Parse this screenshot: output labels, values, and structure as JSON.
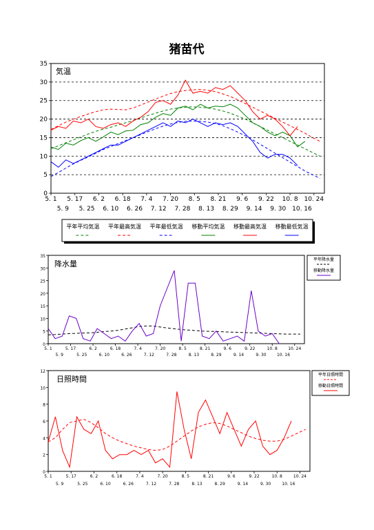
{
  "title": "猪苗代",
  "chart_data": [
    {
      "type": "line",
      "panel_label": "気温",
      "ylim": [
        0,
        35
      ],
      "yticks": [
        0,
        5,
        10,
        15,
        20,
        25,
        30,
        35
      ],
      "xticks_top": [
        "5. 1",
        "5. 17",
        "6. 2",
        "6. 18",
        "7. 4",
        "7. 20",
        "8. 5",
        "8. 21",
        "9. 6",
        "9. 22",
        "10. 8",
        "10. 24"
      ],
      "xticks_bottom": [
        "5. 9",
        "5. 25",
        "6. 10",
        "6. 26",
        "7. 12",
        "7. 28",
        "8. 13",
        "8. 29",
        "9. 14",
        "9. 30",
        "10. 16"
      ],
      "x": [
        "5/1",
        "5/6",
        "5/11",
        "5/16",
        "5/21",
        "5/26",
        "5/31",
        "6/5",
        "6/10",
        "6/15",
        "6/20",
        "6/25",
        "6/30",
        "7/5",
        "7/10",
        "7/15",
        "7/20",
        "7/25",
        "7/30",
        "8/4",
        "8/9",
        "8/14",
        "8/19",
        "8/24",
        "8/29",
        "9/3",
        "9/8",
        "9/13",
        "9/18",
        "9/23",
        "9/28",
        "10/3",
        "10/8",
        "10/13",
        "10/18",
        "10/23",
        "10/28"
      ],
      "grid": "horizontal-dashed",
      "legend": "bottom",
      "series": [
        {
          "name": "平年平均気温",
          "color": "#008000",
          "dash": true,
          "values": [
            12,
            12.8,
            13.6,
            14.4,
            15.2,
            16,
            16.7,
            17.3,
            17.8,
            18.4,
            19,
            19.6,
            20.3,
            21,
            21.6,
            22.2,
            22.7,
            23,
            23.2,
            23.3,
            23.2,
            23,
            22.7,
            22.2,
            21.6,
            20.8,
            20,
            19,
            18,
            17,
            16,
            15,
            14,
            13,
            12,
            11,
            10
          ]
        },
        {
          "name": "平年最高気温",
          "color": "#ff0000",
          "dash": true,
          "values": [
            17.2,
            18.2,
            19.2,
            20,
            20.7,
            21.4,
            22,
            22.5,
            22.7,
            22.6,
            22.5,
            23,
            23.8,
            24.6,
            25.4,
            26.2,
            26.9,
            27.4,
            27.7,
            27.9,
            28,
            27.8,
            27.4,
            26.8,
            26.1,
            25.2,
            24.2,
            23.2,
            22.2,
            21.2,
            20.2,
            19.2,
            18.2,
            17.2,
            16.2,
            15,
            14
          ]
        },
        {
          "name": "平年最低気温",
          "color": "#0000ff",
          "dash": true,
          "values": [
            4.5,
            5.6,
            6.8,
            7.9,
            8.9,
            9.8,
            10.8,
            11.8,
            12.6,
            13.4,
            14.2,
            15,
            15.8,
            16.6,
            17.4,
            18.1,
            18.7,
            19.1,
            19.4,
            19.5,
            19.4,
            19.2,
            18.8,
            18.2,
            17.4,
            16.5,
            15.5,
            14.4,
            13.2,
            12,
            10.8,
            9.6,
            8.4,
            7.2,
            6,
            5,
            4
          ]
        },
        {
          "name": "移動平均気温",
          "color": "#008000",
          "dash": false,
          "values": [
            12.5,
            11.8,
            13.5,
            13,
            14.2,
            15,
            14,
            15.2,
            16.5,
            15.8,
            16.8,
            17,
            18.5,
            19,
            20.5,
            21.5,
            21,
            23,
            23.5,
            22.5,
            24,
            23,
            23.5,
            23.3,
            24,
            23,
            21,
            19,
            18,
            16.5,
            15.5,
            16.5,
            15.5,
            12.5,
            14,
            null,
            null
          ]
        },
        {
          "name": "移動最高気温",
          "color": "#ff0000",
          "dash": false,
          "values": [
            17,
            18,
            17.5,
            19.5,
            19,
            20,
            18,
            17.5,
            18.5,
            19,
            18,
            19.5,
            20.5,
            22,
            24.5,
            25,
            24,
            26.5,
            30.5,
            27,
            27.5,
            27,
            28.5,
            28,
            29,
            27,
            25,
            22,
            20,
            21,
            20,
            18,
            15.5,
            18,
            null,
            null,
            null
          ]
        },
        {
          "name": "移動最低気温",
          "color": "#0000ff",
          "dash": false,
          "values": [
            8.5,
            7,
            9,
            8,
            9,
            10,
            11,
            12,
            13,
            13,
            14,
            15,
            16,
            17,
            18,
            19,
            18,
            19.5,
            19,
            20,
            19,
            18,
            19,
            18.5,
            19,
            18,
            16,
            14,
            11,
            9.5,
            10.5,
            10.5,
            9.5,
            7.5,
            null,
            null,
            null
          ]
        }
      ]
    },
    {
      "type": "line",
      "panel_label": "降水量",
      "ylim": [
        0,
        35
      ],
      "yticks": [
        0,
        5,
        10,
        15,
        20,
        25,
        30,
        35
      ],
      "xticks_top": [
        "5. 1",
        "5. 17",
        "6. 2",
        "6. 18",
        "7. 4",
        "7. 20",
        "8. 5",
        "8. 21",
        "9. 6",
        "9. 22",
        "10. 8",
        "10. 24"
      ],
      "xticks_bottom": [
        "5. 9",
        "5. 25",
        "6. 10",
        "6. 26",
        "7. 12",
        "7. 28",
        "8. 13",
        "8. 29",
        "9. 14",
        "9. 30",
        "10. 16"
      ],
      "x": [
        "5/1",
        "5/6",
        "5/11",
        "5/16",
        "5/21",
        "5/26",
        "5/31",
        "6/5",
        "6/10",
        "6/15",
        "6/20",
        "6/25",
        "6/30",
        "7/5",
        "7/10",
        "7/15",
        "7/20",
        "7/25",
        "7/30",
        "8/4",
        "8/9",
        "8/14",
        "8/19",
        "8/24",
        "8/29",
        "9/3",
        "9/8",
        "9/13",
        "9/18",
        "9/23",
        "9/28",
        "10/3",
        "10/8",
        "10/13",
        "10/18",
        "10/23",
        "10/28"
      ],
      "legend": "right",
      "series": [
        {
          "name": "平年降水量",
          "color": "#000000",
          "dash": true,
          "values": [
            3.5,
            3.6,
            3.8,
            4,
            4.1,
            4.2,
            4.3,
            4.5,
            4.8,
            5,
            5.3,
            5.8,
            6.3,
            6.8,
            7,
            7,
            6.6,
            6.2,
            5.9,
            5.6,
            5.4,
            5.2,
            5,
            4.9,
            4.8,
            4.7,
            4.6,
            4.5,
            4.4,
            4.3,
            4.2,
            4.1,
            4,
            3.9,
            3.8,
            3.8,
            3.8
          ]
        },
        {
          "name": "移動降水量",
          "color": "#6a00c8",
          "dash": false,
          "values": [
            6,
            2,
            3,
            11,
            10,
            2,
            1,
            6,
            4,
            2,
            3,
            1,
            5,
            8,
            3,
            4,
            15,
            22,
            29,
            1,
            24,
            24,
            3,
            2,
            5,
            1,
            2,
            3,
            1,
            21,
            5,
            3,
            4,
            0,
            null,
            null,
            null
          ]
        }
      ]
    },
    {
      "type": "line",
      "panel_label": "日照時間",
      "ylim": [
        0,
        12
      ],
      "yticks": [
        0,
        2,
        4,
        6,
        8,
        10,
        12
      ],
      "xticks_top": [
        "5. 1",
        "5. 17",
        "6. 2",
        "6. 18",
        "7. 4",
        "7. 20",
        "8. 5",
        "8. 21",
        "9. 6",
        "9. 22",
        "10. 8",
        "10. 24"
      ],
      "xticks_bottom": [
        "5. 9",
        "5. 25",
        "6. 10",
        "6. 26",
        "7. 12",
        "7. 28",
        "8. 13",
        "8. 29",
        "9. 14",
        "9. 30",
        "10. 16"
      ],
      "x": [
        "5/1",
        "5/6",
        "5/11",
        "5/16",
        "5/21",
        "5/26",
        "5/31",
        "6/5",
        "6/10",
        "6/15",
        "6/20",
        "6/25",
        "6/30",
        "7/5",
        "7/10",
        "7/15",
        "7/20",
        "7/25",
        "7/30",
        "8/4",
        "8/9",
        "8/14",
        "8/19",
        "8/24",
        "8/29",
        "9/3",
        "9/8",
        "9/13",
        "9/18",
        "9/23",
        "9/28",
        "10/3",
        "10/8",
        "10/13",
        "10/18",
        "10/23",
        "10/28"
      ],
      "legend": "right",
      "series": [
        {
          "name": "平年日照時間",
          "color": "#ff0000",
          "dash": true,
          "values": [
            3.5,
            4,
            5,
            5.8,
            6,
            6.2,
            5.8,
            5.2,
            4.5,
            4,
            3.6,
            3.3,
            3,
            2.8,
            2.6,
            2.5,
            2.6,
            3,
            3.6,
            4.2,
            4.8,
            5.3,
            5.6,
            5.8,
            5.7,
            5.4,
            5,
            4.6,
            4.2,
            3.9,
            3.7,
            3.6,
            3.6,
            3.8,
            4.2,
            4.6,
            5
          ]
        },
        {
          "name": "移動日照時間",
          "color": "#ff0000",
          "dash": false,
          "values": [
            3.5,
            6.5,
            2.5,
            0.5,
            6.5,
            5,
            4.5,
            6,
            2.5,
            1.5,
            2,
            2,
            2.5,
            2,
            2.5,
            1,
            1.5,
            0.5,
            9.5,
            5,
            1.5,
            7,
            8.5,
            6.5,
            4.5,
            7,
            5,
            3,
            5,
            6,
            3,
            2,
            2.5,
            4,
            6,
            null,
            null
          ]
        }
      ]
    }
  ]
}
